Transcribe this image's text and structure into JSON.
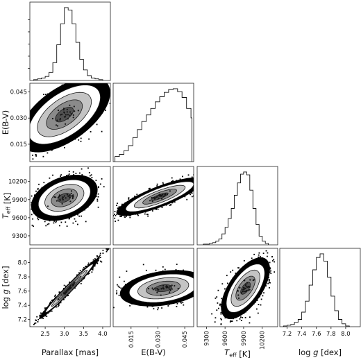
{
  "chart_data": {
    "type": "corner",
    "parameters": [
      {
        "key": "parallax",
        "label_parts": [
          {
            "t": "Parallax [mas]"
          }
        ],
        "range": [
          2.1,
          4.2
        ],
        "ticks": [
          2.5,
          3.0,
          3.5,
          4.0
        ],
        "tick_labels": [
          "2.5",
          "3.0",
          "3.5",
          "4.0"
        ]
      },
      {
        "key": "ebv",
        "label_parts": [
          {
            "t": "E(B-V)"
          }
        ],
        "range": [
          0.005,
          0.05
        ],
        "ticks": [
          0.015,
          0.03,
          0.045
        ],
        "tick_labels": [
          "0.015",
          "0.030",
          "0.045"
        ]
      },
      {
        "key": "teff",
        "label_parts": [
          {
            "t": "T",
            "style": "italic"
          },
          {
            "t": "eff",
            "sub": true
          },
          {
            "t": " [K]"
          }
        ],
        "range": [
          9150,
          10450
        ],
        "ticks": [
          9300,
          9600,
          9900,
          10200
        ],
        "tick_labels": [
          "9300",
          "9600",
          "9900",
          "10200"
        ]
      },
      {
        "key": "logg",
        "label_parts": [
          {
            "t": "log "
          },
          {
            "t": "g",
            "style": "italic"
          },
          {
            "t": " [dex]"
          }
        ],
        "range": [
          7.1,
          8.2
        ],
        "ticks": [
          7.2,
          7.4,
          7.6,
          7.8,
          8.0
        ],
        "tick_labels": [
          "7.2",
          "7.4",
          "7.6",
          "7.8",
          "8.0"
        ]
      }
    ],
    "histograms": [
      {
        "param": "parallax",
        "bins": [
          2.2,
          2.3,
          2.4,
          2.5,
          2.6,
          2.7,
          2.8,
          2.9,
          3.0,
          3.1,
          3.2,
          3.3,
          3.4,
          3.5,
          3.6,
          3.7,
          3.8,
          3.9,
          4.0
        ],
        "counts": [
          1,
          2,
          3,
          5,
          10,
          22,
          44,
          70,
          90,
          87,
          70,
          47,
          26,
          13,
          6,
          3,
          2,
          1
        ]
      },
      {
        "param": "ebv",
        "bins": [
          0.006,
          0.0085,
          0.011,
          0.0135,
          0.016,
          0.0185,
          0.021,
          0.0235,
          0.026,
          0.0285,
          0.031,
          0.0335,
          0.036,
          0.0385,
          0.041,
          0.0435,
          0.046,
          0.0485,
          0.049
        ],
        "counts": [
          7,
          10,
          15,
          22,
          33,
          44,
          55,
          64,
          73,
          82,
          89,
          95,
          99,
          100,
          96,
          88,
          73,
          60
        ]
      },
      {
        "param": "teff",
        "bins": [
          9250,
          9300,
          9350,
          9400,
          9450,
          9500,
          9550,
          9600,
          9650,
          9700,
          9750,
          9800,
          9850,
          9900,
          9950,
          10000,
          10050,
          10100,
          10150,
          10200,
          10250,
          10300
        ],
        "counts": [
          1,
          1,
          2,
          3,
          5,
          8,
          15,
          24,
          36,
          50,
          68,
          85,
          97,
          100,
          96,
          75,
          50,
          28,
          12,
          5,
          2
        ]
      },
      {
        "param": "logg",
        "bins": [
          7.15,
          7.2,
          7.25,
          7.3,
          7.35,
          7.4,
          7.45,
          7.5,
          7.55,
          7.6,
          7.65,
          7.7,
          7.75,
          7.8,
          7.85,
          7.9,
          7.95,
          8.0,
          8.05
        ],
        "counts": [
          1,
          2,
          3,
          6,
          10,
          20,
          35,
          57,
          78,
          95,
          100,
          90,
          68,
          42,
          22,
          10,
          4,
          1
        ]
      }
    ],
    "joint": [
      {
        "x": "parallax",
        "y": "ebv",
        "mean": [
          3.0,
          0.032
        ],
        "sd": [
          0.47,
          0.0085
        ],
        "rho": 0.58
      },
      {
        "x": "parallax",
        "y": "teff",
        "mean": [
          3.0,
          9930
        ],
        "sd": [
          0.34,
          150
        ],
        "rho": 0.35
      },
      {
        "x": "ebv",
        "y": "teff",
        "mean": [
          0.031,
          9950
        ],
        "sd": [
          0.0095,
          125
        ],
        "rho": 0.82
      },
      {
        "x": "parallax",
        "y": "logg",
        "mean": [
          3.13,
          7.64
        ],
        "sd": [
          0.31,
          0.17
        ],
        "rho": 0.985
      },
      {
        "x": "ebv",
        "y": "logg",
        "mean": [
          0.033,
          7.64
        ],
        "sd": [
          0.0095,
          0.1
        ],
        "rho": 0.3
      },
      {
        "x": "teff",
        "y": "logg",
        "mean": [
          9930,
          7.64
        ],
        "sd": [
          155,
          0.17
        ],
        "rho": 0.62
      }
    ],
    "contour_sigmas": [
      0.5,
      1.0,
      1.5,
      2.0
    ],
    "colors": {
      "sample": "#000000",
      "contour": "#1a1a1a",
      "fill_outer": "#ffffff",
      "fill_mid": "#c4c4c4",
      "fill_inner": "#8a8a8a",
      "fill_core": "#525252",
      "frame": "#222222"
    }
  }
}
